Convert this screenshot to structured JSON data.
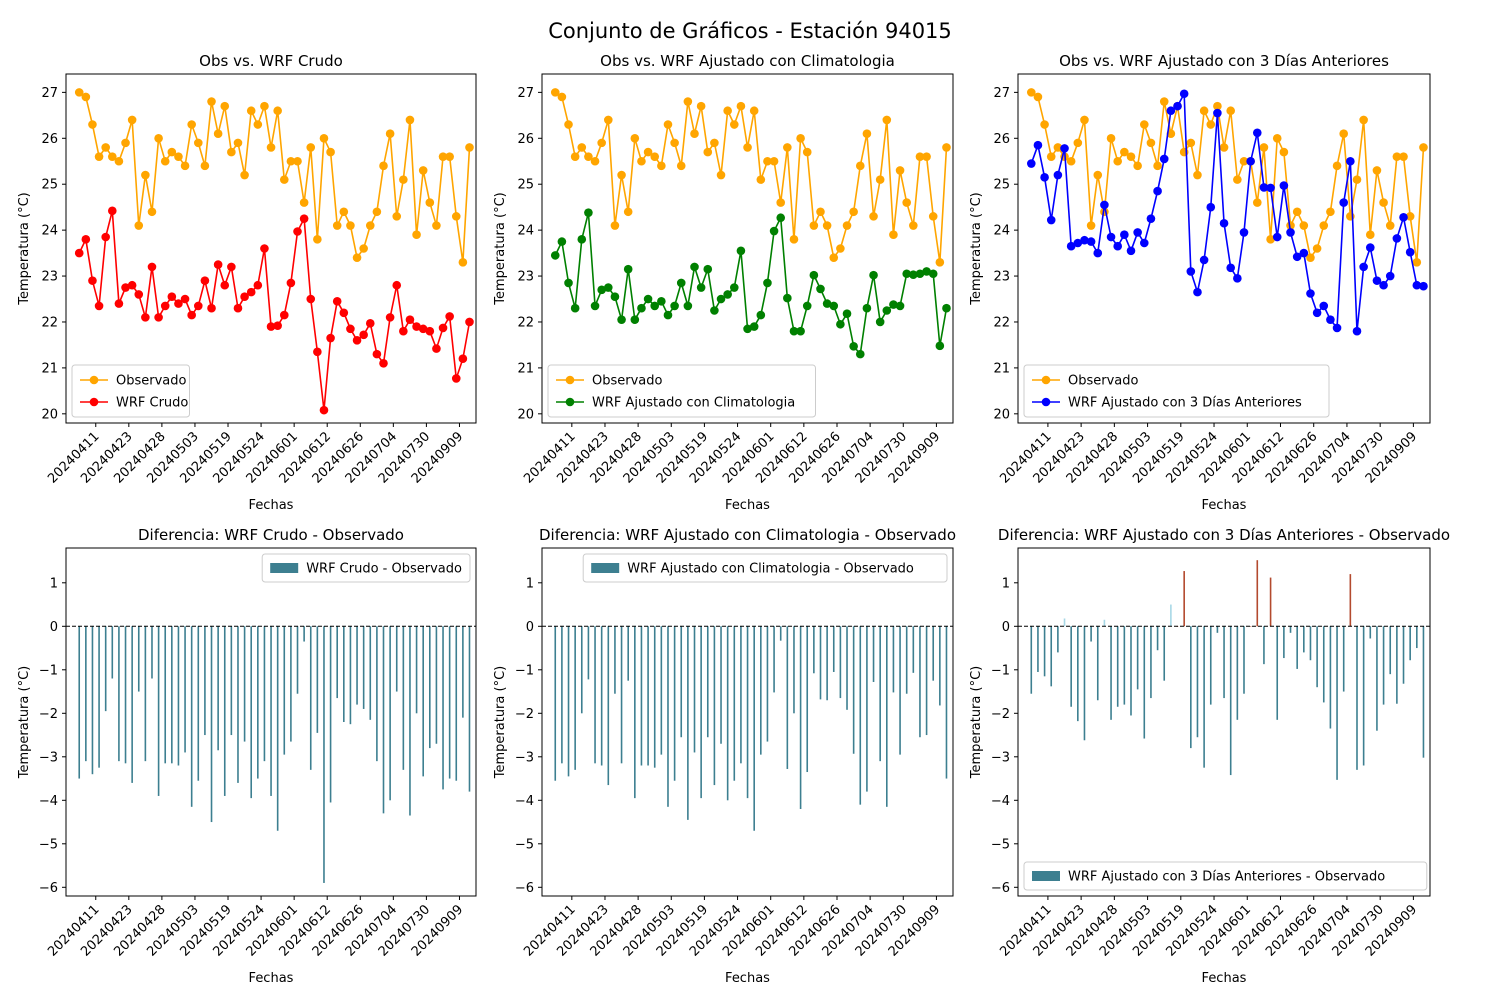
{
  "figure": {
    "suptitle": "Conjunto de Gráficos - Estación 94015",
    "colors": {
      "observado": "#ffa500",
      "wrf_crudo": "#ff0000",
      "wrf_clim": "#008000",
      "wrf_3dias": "#0000ff",
      "diff_neg": "#3d7f90",
      "diff_pos": "#b34a2e",
      "diff_pale": "#a8d8e6"
    }
  },
  "chart_data": [
    {
      "type": "line",
      "title": "Obs vs. WRF Crudo",
      "xlabel": "Fechas",
      "ylabel": "Temperatura (°C)",
      "ylim": [
        19.8,
        27.4
      ],
      "yticks": [
        20,
        21,
        22,
        23,
        24,
        25,
        26,
        27
      ],
      "x_tick_labels": [
        "20240411",
        "20240423",
        "20240428",
        "20240503",
        "20240519",
        "20240524",
        "20240601",
        "20240612",
        "20240626",
        "20240704",
        "20240730",
        "20240909"
      ],
      "x_tick_positions": [
        3,
        9,
        15,
        21,
        27,
        33,
        39,
        45,
        51,
        57,
        63,
        69
      ],
      "legend": "lower-left",
      "series": [
        {
          "name": "Observado",
          "color_key": "observado",
          "values": [
            27.0,
            26.9,
            26.3,
            25.6,
            25.8,
            25.6,
            25.5,
            25.9,
            26.4,
            24.1,
            25.2,
            24.4,
            26.0,
            25.5,
            25.7,
            25.6,
            25.4,
            26.3,
            25.9,
            25.4,
            26.8,
            26.1,
            26.7,
            25.7,
            25.9,
            25.2,
            26.6,
            26.3,
            26.7,
            25.8,
            26.6,
            25.1,
            25.5,
            25.5,
            24.6,
            25.8,
            23.8,
            26.0,
            25.7,
            24.1,
            24.4,
            24.1,
            23.4,
            23.6,
            24.1,
            24.4,
            25.4,
            26.1,
            24.3,
            25.1,
            26.4,
            23.9,
            25.3,
            24.6,
            24.1,
            25.6,
            25.6,
            24.3,
            23.3,
            25.8
          ]
        },
        {
          "name": "WRF Crudo",
          "color_key": "wrf_crudo",
          "values": [
            23.5,
            23.8,
            22.9,
            22.35,
            23.85,
            24.42,
            22.4,
            22.75,
            22.8,
            22.6,
            22.1,
            23.2,
            22.1,
            22.35,
            22.55,
            22.4,
            22.5,
            22.15,
            22.35,
            22.9,
            22.3,
            23.25,
            22.8,
            23.2,
            22.3,
            22.55,
            22.65,
            22.8,
            23.6,
            21.9,
            21.92,
            22.15,
            22.85,
            23.97,
            24.25,
            22.5,
            21.35,
            20.08,
            21.65,
            22.45,
            22.2,
            21.85,
            21.6,
            21.72,
            21.97,
            21.3,
            21.1,
            22.1,
            22.8,
            21.8,
            22.05,
            21.9,
            21.85,
            21.8,
            21.42,
            21.87,
            22.12,
            20.77,
            21.2,
            22.0
          ]
        }
      ]
    },
    {
      "type": "line",
      "title": "Obs vs. WRF Ajustado con Climatologia",
      "xlabel": "Fechas",
      "ylabel": "Temperatura (°C)",
      "ylim": [
        19.8,
        27.4
      ],
      "yticks": [
        20,
        21,
        22,
        23,
        24,
        25,
        26,
        27
      ],
      "x_tick_labels": [
        "20240411",
        "20240423",
        "20240428",
        "20240503",
        "20240519",
        "20240524",
        "20240601",
        "20240612",
        "20240626",
        "20240704",
        "20240730",
        "20240909"
      ],
      "x_tick_positions": [
        3,
        9,
        15,
        21,
        27,
        33,
        39,
        45,
        51,
        57,
        63,
        69
      ],
      "legend": "lower-left",
      "series": [
        {
          "name": "Observado",
          "color_key": "observado",
          "values": [
            27.0,
            26.9,
            26.3,
            25.6,
            25.8,
            25.6,
            25.5,
            25.9,
            26.4,
            24.1,
            25.2,
            24.4,
            26.0,
            25.5,
            25.7,
            25.6,
            25.4,
            26.3,
            25.9,
            25.4,
            26.8,
            26.1,
            26.7,
            25.7,
            25.9,
            25.2,
            26.6,
            26.3,
            26.7,
            25.8,
            26.6,
            25.1,
            25.5,
            25.5,
            24.6,
            25.8,
            23.8,
            26.0,
            25.7,
            24.1,
            24.4,
            24.1,
            23.4,
            23.6,
            24.1,
            24.4,
            25.4,
            26.1,
            24.3,
            25.1,
            26.4,
            23.9,
            25.3,
            24.6,
            24.1,
            25.6,
            25.6,
            24.3,
            23.3,
            25.8
          ]
        },
        {
          "name": "WRF Ajustado con Climatologia",
          "color_key": "wrf_clim",
          "values": [
            23.45,
            23.75,
            22.85,
            22.3,
            23.8,
            24.38,
            22.35,
            22.7,
            22.75,
            22.55,
            22.05,
            23.15,
            22.05,
            22.3,
            22.5,
            22.35,
            22.45,
            22.15,
            22.35,
            22.85,
            22.35,
            23.2,
            22.75,
            23.15,
            22.25,
            22.5,
            22.6,
            22.75,
            23.55,
            21.85,
            21.9,
            22.15,
            22.85,
            23.98,
            24.27,
            22.52,
            21.8,
            21.8,
            22.35,
            23.02,
            22.72,
            22.4,
            22.35,
            21.95,
            22.18,
            21.47,
            21.3,
            22.3,
            23.02,
            22.0,
            22.25,
            22.38,
            22.35,
            23.05,
            23.03,
            23.05,
            23.1,
            23.05,
            21.48,
            22.3
          ]
        }
      ]
    },
    {
      "type": "line",
      "title": "Obs vs. WRF Ajustado con 3 Días Anteriores",
      "xlabel": "Fechas",
      "ylabel": "Temperatura (°C)",
      "ylim": [
        19.8,
        27.4
      ],
      "yticks": [
        20,
        21,
        22,
        23,
        24,
        25,
        26,
        27
      ],
      "x_tick_labels": [
        "20240411",
        "20240423",
        "20240428",
        "20240503",
        "20240519",
        "20240524",
        "20240601",
        "20240612",
        "20240626",
        "20240704",
        "20240730",
        "20240909"
      ],
      "x_tick_positions": [
        3,
        9,
        15,
        21,
        27,
        33,
        39,
        45,
        51,
        57,
        63,
        69
      ],
      "legend": "lower-left",
      "series": [
        {
          "name": "Observado",
          "color_key": "observado",
          "values": [
            27.0,
            26.9,
            26.3,
            25.6,
            25.8,
            25.6,
            25.5,
            25.9,
            26.4,
            24.1,
            25.2,
            24.4,
            26.0,
            25.5,
            25.7,
            25.6,
            25.4,
            26.3,
            25.9,
            25.4,
            26.8,
            26.1,
            26.7,
            25.7,
            25.9,
            25.2,
            26.6,
            26.3,
            26.7,
            25.8,
            26.6,
            25.1,
            25.5,
            25.5,
            24.6,
            25.8,
            23.8,
            26.0,
            25.7,
            24.1,
            24.4,
            24.1,
            23.4,
            23.6,
            24.1,
            24.4,
            25.4,
            26.1,
            24.3,
            25.1,
            26.4,
            23.9,
            25.3,
            24.6,
            24.1,
            25.6,
            25.6,
            24.3,
            23.3,
            25.8
          ]
        },
        {
          "name": "WRF Ajustado con 3 Días Anteriores",
          "color_key": "wrf_3dias",
          "values": [
            25.45,
            25.85,
            25.15,
            24.22,
            25.2,
            25.78,
            23.65,
            23.72,
            23.78,
            23.75,
            23.5,
            24.55,
            23.85,
            23.65,
            23.9,
            23.55,
            23.95,
            23.72,
            24.25,
            24.85,
            25.55,
            26.6,
            26.7,
            26.97,
            23.1,
            22.65,
            23.35,
            24.5,
            26.55,
            24.15,
            23.18,
            22.95,
            23.95,
            25.5,
            26.12,
            24.93,
            24.92,
            23.85,
            24.97,
            23.95,
            23.42,
            23.5,
            22.62,
            22.2,
            22.35,
            22.05,
            21.87,
            24.6,
            25.5,
            21.8,
            23.2,
            23.62,
            22.9,
            22.8,
            23.0,
            23.82,
            24.28,
            23.52,
            22.8,
            22.78
          ]
        }
      ]
    },
    {
      "type": "bar",
      "title": "Diferencia: WRF Crudo - Observado",
      "xlabel": "Fechas",
      "ylabel": "Temperatura (°C)",
      "ylim": [
        -6.2,
        1.8
      ],
      "yticks": [
        -6,
        -5,
        -4,
        -3,
        -2,
        -1,
        0,
        1
      ],
      "x_tick_labels": [
        "20240411",
        "20240423",
        "20240428",
        "20240503",
        "20240519",
        "20240524",
        "20240601",
        "20240612",
        "20240626",
        "20240704",
        "20240730",
        "20240909"
      ],
      "x_tick_positions": [
        3,
        9,
        15,
        21,
        27,
        33,
        39,
        45,
        51,
        57,
        63,
        69
      ],
      "legend": "upper-right",
      "series": [
        {
          "name": "WRF Crudo - Observado",
          "values": [
            -3.5,
            -3.1,
            -3.4,
            -3.25,
            -1.95,
            -1.2,
            -3.1,
            -3.15,
            -3.6,
            -1.5,
            -3.1,
            -1.2,
            -3.9,
            -3.15,
            -3.15,
            -3.2,
            -2.9,
            -4.15,
            -3.55,
            -2.5,
            -4.5,
            -2.85,
            -3.9,
            -2.5,
            -3.6,
            -2.65,
            -3.95,
            -3.5,
            -3.1,
            -3.9,
            -4.7,
            -2.95,
            -2.65,
            -1.55,
            -0.35,
            -3.3,
            -2.45,
            -5.9,
            -4.05,
            -1.65,
            -2.2,
            -2.25,
            -1.8,
            -1.9,
            -2.15,
            -3.1,
            -4.3,
            -4.0,
            -1.5,
            -3.3,
            -4.35,
            -2.0,
            -3.45,
            -2.8,
            -2.7,
            -3.75,
            -3.5,
            -3.55,
            -2.1,
            -3.8
          ]
        }
      ]
    },
    {
      "type": "bar",
      "title": "Diferencia: WRF Ajustado con Climatologia - Observado",
      "xlabel": "Fechas",
      "ylabel": "Temperatura (°C)",
      "ylim": [
        -6.2,
        1.8
      ],
      "yticks": [
        -6,
        -5,
        -4,
        -3,
        -2,
        -1,
        0,
        1
      ],
      "x_tick_labels": [
        "20240411",
        "20240423",
        "20240428",
        "20240503",
        "20240519",
        "20240524",
        "20240601",
        "20240612",
        "20240626",
        "20240704",
        "20240730",
        "20240909"
      ],
      "x_tick_positions": [
        3,
        9,
        15,
        21,
        27,
        33,
        39,
        45,
        51,
        57,
        63,
        69
      ],
      "legend": "upper-right",
      "series": [
        {
          "name": "WRF Ajustado con Climatologia - Observado",
          "values": [
            -3.55,
            -3.15,
            -3.45,
            -3.3,
            -2.0,
            -1.22,
            -3.15,
            -3.2,
            -3.65,
            -1.55,
            -3.15,
            -1.25,
            -3.95,
            -3.2,
            -3.2,
            -3.25,
            -2.95,
            -4.15,
            -3.55,
            -2.55,
            -4.45,
            -2.9,
            -3.95,
            -2.55,
            -3.65,
            -2.7,
            -4.0,
            -3.55,
            -3.15,
            -3.95,
            -4.7,
            -2.95,
            -2.65,
            -1.52,
            -0.33,
            -3.28,
            -2.0,
            -4.2,
            -3.35,
            -1.08,
            -1.68,
            -1.7,
            -1.05,
            -1.65,
            -1.92,
            -2.93,
            -4.1,
            -3.8,
            -1.28,
            -3.1,
            -4.15,
            -1.52,
            -2.95,
            -1.55,
            -1.07,
            -2.55,
            -2.5,
            -1.25,
            -1.82,
            -3.5
          ]
        }
      ]
    },
    {
      "type": "bar",
      "title": "Diferencia: WRF Ajustado con 3 Días Anteriores - Observado",
      "xlabel": "Fechas",
      "ylabel": "Temperatura (°C)",
      "ylim": [
        -6.2,
        1.8
      ],
      "yticks": [
        -6,
        -5,
        -4,
        -3,
        -2,
        -1,
        0,
        1
      ],
      "x_tick_labels": [
        "20240411",
        "20240423",
        "20240428",
        "20240503",
        "20240519",
        "20240524",
        "20240601",
        "20240612",
        "20240626",
        "20240704",
        "20240730",
        "20240909"
      ],
      "x_tick_positions": [
        3,
        9,
        15,
        21,
        27,
        33,
        39,
        45,
        51,
        57,
        63,
        69
      ],
      "legend": "lower-center",
      "series": [
        {
          "name": "WRF Ajustado con 3 Días Anteriores - Observado",
          "values": [
            -1.55,
            -1.05,
            -1.15,
            -1.38,
            -0.6,
            0.18,
            -1.85,
            -2.18,
            -2.62,
            -0.35,
            -1.7,
            0.15,
            -2.15,
            -1.85,
            -1.8,
            -2.05,
            -1.45,
            -2.58,
            -1.65,
            -0.55,
            -1.25,
            0.5,
            0.0,
            1.27,
            -2.8,
            -2.55,
            -3.25,
            -1.8,
            -0.15,
            -1.65,
            -3.42,
            -2.15,
            -1.55,
            0.0,
            1.52,
            -0.87,
            1.12,
            -2.15,
            -0.73,
            -0.15,
            -0.98,
            -0.6,
            -0.78,
            -1.4,
            -1.75,
            -2.35,
            -3.53,
            -1.5,
            1.2,
            -3.3,
            -3.2,
            -0.28,
            -2.4,
            -1.8,
            -1.1,
            -1.78,
            -1.32,
            -0.78,
            -0.5,
            -3.02
          ]
        }
      ]
    }
  ]
}
